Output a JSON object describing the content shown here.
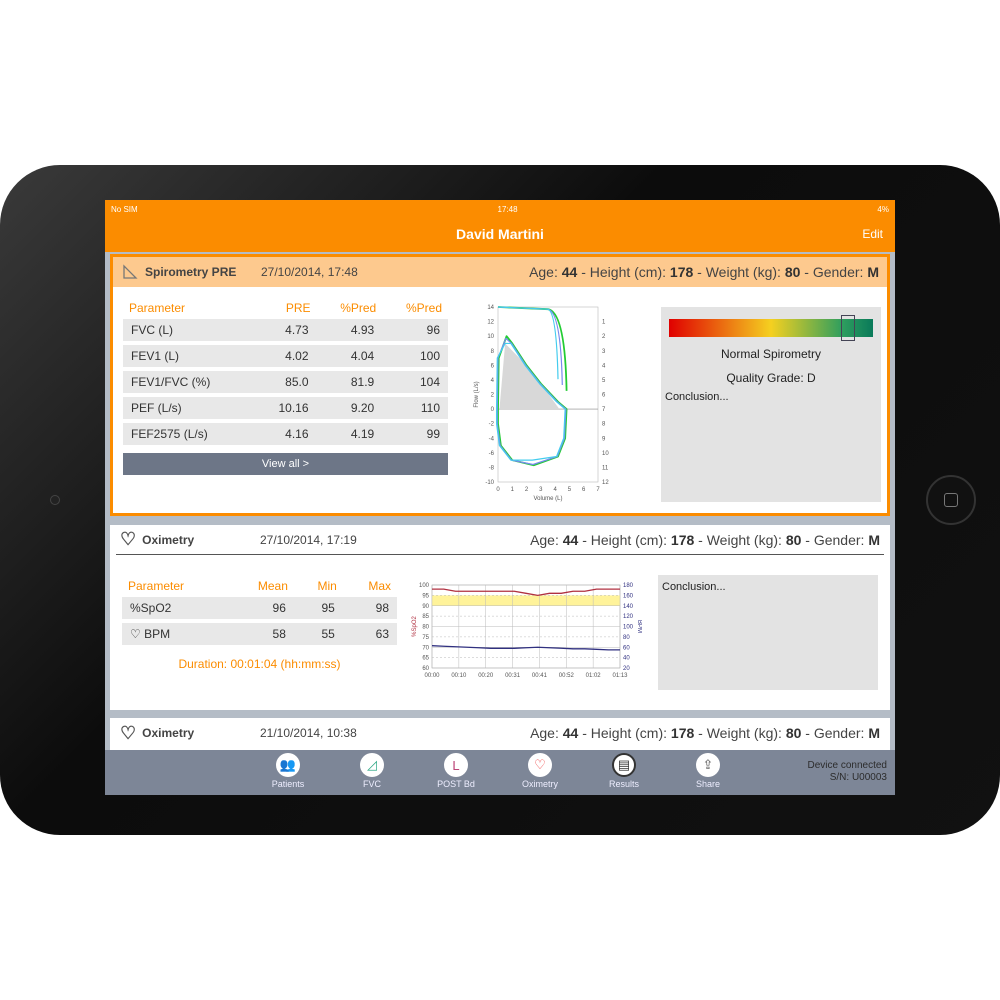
{
  "status": {
    "carrier": "No SIM",
    "time": "17:48",
    "battery": "4%"
  },
  "nav": {
    "title": "David Martini",
    "edit": "Edit"
  },
  "patient_info": {
    "age_label": "Age:",
    "age": "44",
    "height_label": "- Height (cm):",
    "height": "178",
    "weight_label": "- Weight (kg):",
    "weight": "80",
    "gender_label": "- Gender:",
    "gender": "M"
  },
  "spirometry": {
    "title": "Spirometry PRE",
    "date": "27/10/2014, 17:48",
    "headers": [
      "Parameter",
      "PRE",
      "%Pred",
      "%Pred"
    ],
    "rows": [
      [
        "FVC (L)",
        "4.73",
        "4.93",
        "96"
      ],
      [
        "FEV1 (L)",
        "4.02",
        "4.04",
        "100"
      ],
      [
        "FEV1/FVC (%)",
        "85.0",
        "81.9",
        "104"
      ],
      [
        "PEF (L/s)",
        "10.16",
        "9.20",
        "110"
      ],
      [
        "FEF2575 (L/s)",
        "4.16",
        "4.19",
        "99"
      ]
    ],
    "view_all": "View all >",
    "result": "Normal Spirometry",
    "quality": "Quality Grade: D",
    "conclusion": "Conclusion...",
    "gradient_colors": [
      "#e00000",
      "#f5d020",
      "#2e9e5e",
      "#0a7a5a"
    ],
    "chart": {
      "xlabel": "Volume (L)",
      "ylabel": "Flow (L/s)",
      "y2label": "Time (s)",
      "xticks": [
        "0",
        "1",
        "2",
        "3",
        "4",
        "5",
        "6",
        "7"
      ],
      "yticks": [
        "14",
        "12",
        "10",
        "8",
        "6",
        "4",
        "2",
        "0",
        "-2",
        "-4",
        "-6",
        "-8",
        "-10"
      ],
      "y2ticks": [
        "1",
        "2",
        "3",
        "4",
        "5",
        "6",
        "7",
        "8",
        "9",
        "10",
        "11",
        "12"
      ],
      "series_colors": [
        "#22cc33",
        "#7788ee",
        "#44ccee"
      ]
    }
  },
  "oximetry1": {
    "title": "Oximetry",
    "date": "27/10/2014, 17:19",
    "headers": [
      "Parameter",
      "Mean",
      "Min",
      "Max"
    ],
    "rows": [
      [
        "%SpO2",
        "96",
        "95",
        "98"
      ],
      [
        "♡ BPM",
        "58",
        "55",
        "63"
      ]
    ],
    "duration": "Duration: 00:01:04 (hh:mm:ss)",
    "conclusion": "Conclusion...",
    "chart": {
      "ylabel": "%SpO2",
      "y2label": "BPM",
      "yticks": [
        "100",
        "95",
        "90",
        "85",
        "80",
        "75",
        "70",
        "65",
        "60"
      ],
      "y2ticks": [
        "180",
        "160",
        "140",
        "120",
        "100",
        "80",
        "60",
        "40",
        "20"
      ],
      "xticks": [
        "00:00",
        "00:10",
        "00:20",
        "00:31",
        "00:41",
        "00:52",
        "01:02",
        "01:13"
      ],
      "spo2": [
        98,
        98,
        97,
        97,
        97,
        97,
        97,
        97,
        96,
        95,
        96,
        96,
        97,
        97,
        98,
        98,
        98
      ],
      "bpm": [
        63,
        62,
        61,
        60,
        59,
        58,
        58,
        58,
        59,
        60,
        59,
        58,
        57,
        57,
        56,
        55,
        55
      ],
      "spo2_color": "#b03040",
      "bpm_color": "#303080",
      "band_color": "#fff39a"
    }
  },
  "oximetry2": {
    "title": "Oximetry",
    "date": "21/10/2014, 10:38"
  },
  "tabs": [
    {
      "label": "Patients",
      "icon": "patients-icon"
    },
    {
      "label": "FVC",
      "icon": "fvc-icon"
    },
    {
      "label": "POST Bd",
      "icon": "post-bd-icon"
    },
    {
      "label": "Oximetry",
      "icon": "heart-icon"
    },
    {
      "label": "Results",
      "icon": "results-icon"
    },
    {
      "label": "Share",
      "icon": "share-icon"
    }
  ],
  "device": {
    "line1": "Device connected",
    "line2": "S/N: U00003"
  }
}
